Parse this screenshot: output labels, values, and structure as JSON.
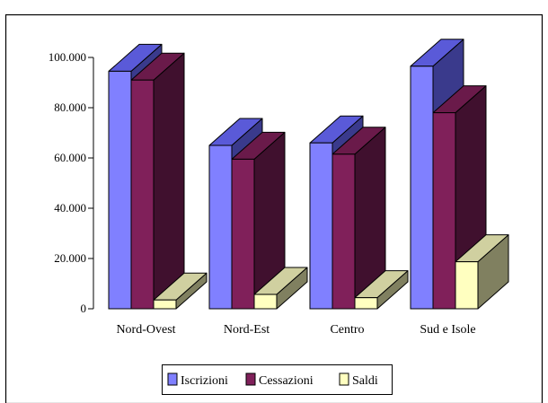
{
  "colors": {
    "iscrizioni": {
      "front": "#8080ff",
      "top": "#5a5ad8",
      "side": "#3a3a8c"
    },
    "cessazioni": {
      "front": "#80205a",
      "top": "#6a1a4a",
      "side": "#40102e"
    },
    "saldi": {
      "front": "#ffffc0",
      "top": "#d0d0a0",
      "side": "#808060"
    }
  },
  "chart_data": {
    "type": "bar",
    "categories": [
      "Nord-Ovest",
      "Nord-Est",
      "Centro",
      "Sud e Isole"
    ],
    "series": [
      {
        "name": "Iscrizioni",
        "values": [
          94500,
          65000,
          66000,
          96500
        ]
      },
      {
        "name": "Cessazioni",
        "values": [
          91000,
          59500,
          61500,
          78000
        ]
      },
      {
        "name": "Saldi",
        "values": [
          3500,
          5700,
          4400,
          18700
        ]
      }
    ],
    "yticks": [
      "0",
      "20.000",
      "40.000",
      "60.000",
      "80.000",
      "100.000"
    ],
    "ylim": [
      0,
      100000
    ],
    "grid": false,
    "legend": "bottom-center",
    "three_d": true
  }
}
